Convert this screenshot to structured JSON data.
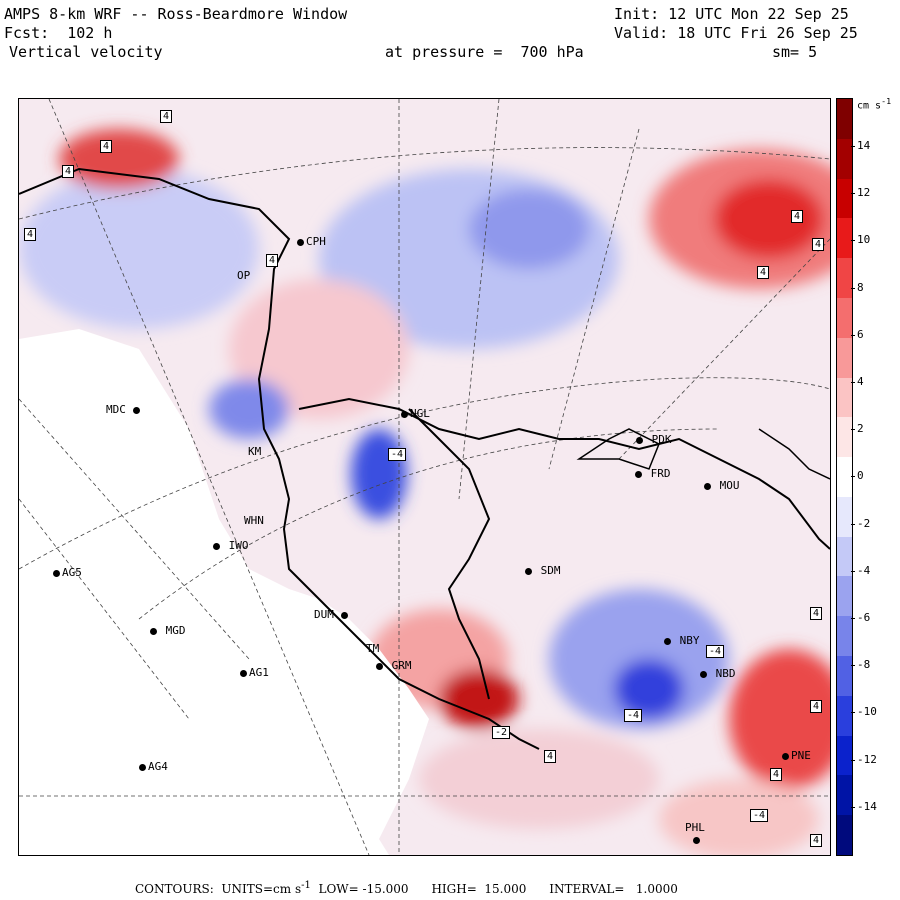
{
  "header": {
    "model_title": "AMPS 8-km WRF -- Ross-Beardmore Window",
    "init_time": "Init: 12 UTC Mon 22 Sep 25",
    "forecast": "Fcst:  102 h",
    "valid_time": "Valid: 18 UTC Fri 26 Sep 25",
    "field": "Vertical velocity",
    "pressure": "at pressure =  700 hPa",
    "smoothing": "sm= 5"
  },
  "stations": [
    {
      "label": "MDC"
    },
    {
      "label": "AG5"
    },
    {
      "label": "IWO"
    },
    {
      "label": "MGD"
    },
    {
      "label": "AG1"
    },
    {
      "label": "AG4"
    },
    {
      "label": "WHN"
    },
    {
      "label": "NGL"
    },
    {
      "label": "PDK"
    },
    {
      "label": "FRD"
    },
    {
      "label": "MOU"
    },
    {
      "label": "SDM"
    },
    {
      "label": "NBY"
    },
    {
      "label": "NBD"
    },
    {
      "label": "GRM"
    },
    {
      "label": "PNE"
    },
    {
      "label": "PHL"
    },
    {
      "label": "DUM"
    },
    {
      "label": "CPH"
    },
    {
      "label": "OP"
    },
    {
      "label": "KM"
    },
    {
      "label": "TM"
    }
  ],
  "contour_labels": [
    "4",
    "4",
    "4",
    "4",
    "4",
    "4",
    "4",
    "-4",
    "4",
    "-4",
    "-4",
    "-2",
    "4",
    "4",
    "4",
    "-4",
    "4",
    "4"
  ],
  "colorbar": {
    "units": "cm s",
    "units_exp": "-1",
    "ticks": [
      "14",
      "12",
      "10",
      "8",
      "6",
      "4",
      "2",
      "0",
      "-2",
      "-4",
      "-6",
      "-8",
      "-10",
      "-12",
      "-14"
    ],
    "colors": [
      "#7f0000",
      "#a30000",
      "#c80000",
      "#e81a1a",
      "#f04545",
      "#f46e6e",
      "#f89999",
      "#fbc4c4",
      "#fde6e6",
      "#ffffff",
      "#e6e8fc",
      "#c4c9f7",
      "#9ba3ef",
      "#7884ea",
      "#5161e4",
      "#2a3fdd",
      "#0b22cc",
      "#0014a6",
      "#000a7d"
    ]
  },
  "footer": {
    "contours": "CONTOURS:  UNITS=cm s",
    "units_exp": "-1",
    "low": "LOW= -15.000",
    "high": "HIGH=  15.000",
    "interval": "INTERVAL=   1.0000"
  }
}
